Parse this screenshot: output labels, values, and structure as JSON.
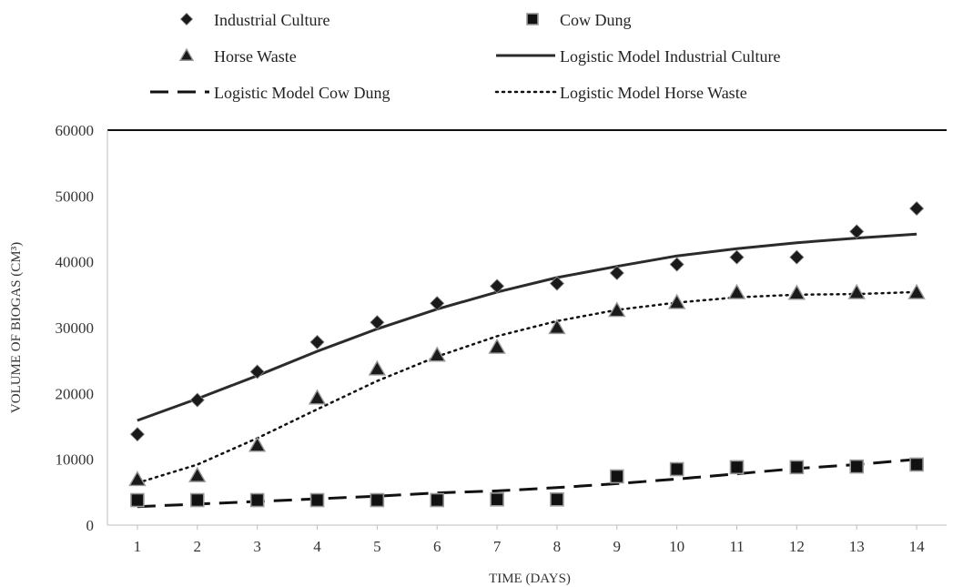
{
  "chart_data": {
    "type": "scatter",
    "title": "",
    "xlabel": "TIME (DAYS)",
    "ylabel": "VOLUME OF BIOGAS (CM³)",
    "xlim": [
      0.5,
      14.5
    ],
    "ylim": [
      0,
      60000
    ],
    "x_ticks": [
      1,
      2,
      3,
      4,
      5,
      6,
      7,
      8,
      9,
      10,
      11,
      12,
      13,
      14
    ],
    "y_ticks": [
      0,
      10000,
      20000,
      30000,
      40000,
      50000,
      60000
    ],
    "grid": false,
    "legend_position": "top",
    "x": [
      1,
      2,
      3,
      4,
      5,
      6,
      7,
      8,
      9,
      10,
      11,
      12,
      13,
      14
    ],
    "series": [
      {
        "name": "Industrial Culture",
        "kind": "points",
        "marker": "diamond",
        "color": "#1a1a1a",
        "values": [
          13800,
          19000,
          23300,
          27800,
          30800,
          33700,
          36300,
          36700,
          38300,
          39600,
          40700,
          40700,
          44600,
          48100
        ]
      },
      {
        "name": "Cow Dung",
        "kind": "points",
        "marker": "square",
        "color": "#111111",
        "values": [
          3800,
          3800,
          3800,
          3800,
          3800,
          3800,
          3900,
          3900,
          7400,
          8500,
          8800,
          8800,
          8900,
          9200
        ]
      },
      {
        "name": "Horse Waste",
        "kind": "points",
        "marker": "triangle",
        "color": "#1a1a1a",
        "values": [
          6900,
          7500,
          12100,
          19300,
          23700,
          25800,
          27000,
          30000,
          32600,
          33800,
          35300,
          35200,
          35300,
          35300
        ]
      },
      {
        "name": "Logistic Model Industrial Culture",
        "kind": "line",
        "dash": "solid",
        "color": "#2b2b2b",
        "values": [
          15900,
          19200,
          22700,
          26400,
          29800,
          32800,
          35400,
          37600,
          39300,
          40900,
          42000,
          42900,
          43600,
          44200
        ]
      },
      {
        "name": "Logistic Model Cow Dung",
        "kind": "line",
        "dash": "dashed",
        "color": "#111111",
        "values": [
          2800,
          3200,
          3600,
          4000,
          4400,
          4900,
          5200,
          5700,
          6300,
          7000,
          7800,
          8600,
          9200,
          10000
        ]
      },
      {
        "name": "Logistic Model Horse Waste",
        "kind": "line",
        "dash": "dotted",
        "color": "#111111",
        "values": [
          6400,
          9200,
          13200,
          17600,
          21900,
          25600,
          28700,
          31000,
          32700,
          33800,
          34600,
          35000,
          35100,
          35400
        ]
      }
    ]
  }
}
